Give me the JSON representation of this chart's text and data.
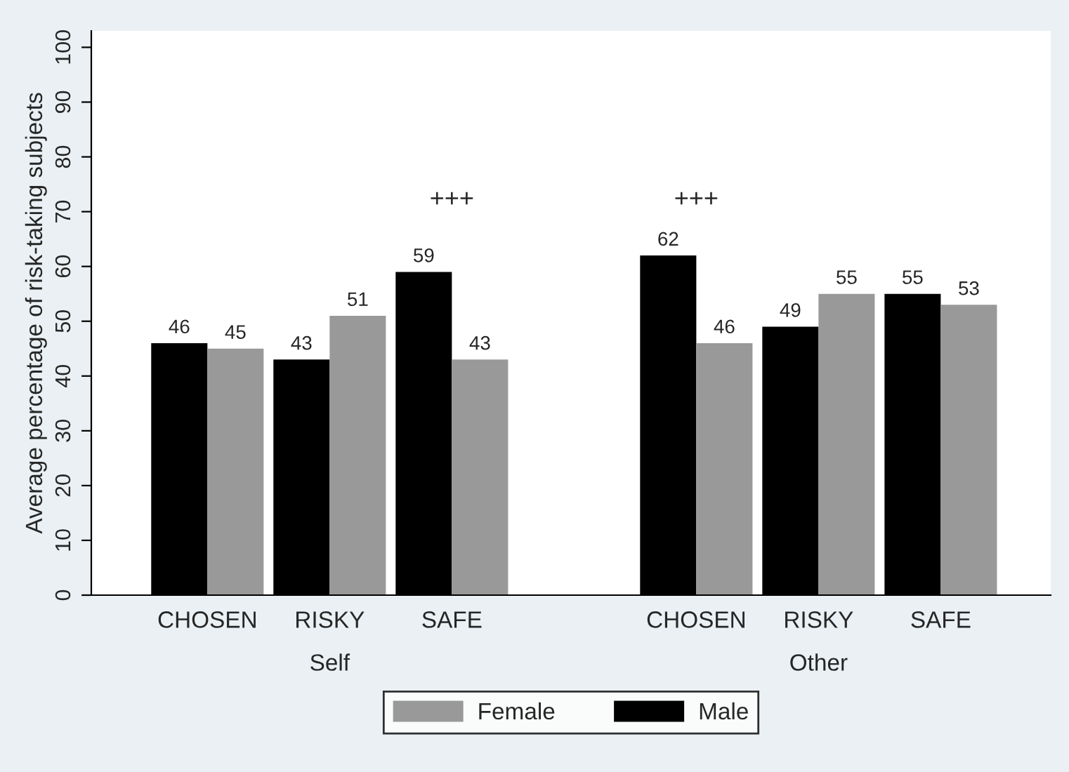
{
  "chart_data": {
    "type": "bar",
    "ylabel": "Average percentage of risk-taking subjects",
    "categories": [
      "CHOSEN",
      "RISKY",
      "SAFE",
      null,
      "CHOSEN",
      "RISKY",
      "SAFE"
    ],
    "series": [
      {
        "name": "Male",
        "color": "#000000",
        "values": [
          46,
          43,
          59,
          null,
          62,
          49,
          55
        ]
      },
      {
        "name": "Female",
        "color": "#999999",
        "values": [
          45,
          51,
          43,
          null,
          46,
          55,
          53
        ]
      }
    ],
    "ylim": [
      0,
      103
    ],
    "yticks": [
      0,
      10,
      20,
      30,
      40,
      50,
      60,
      70,
      80,
      90,
      100
    ],
    "data_labels": true,
    "legend": "bottom",
    "grid": false,
    "annotations": [
      "Self",
      "Other",
      "+++",
      "+++"
    ]
  }
}
